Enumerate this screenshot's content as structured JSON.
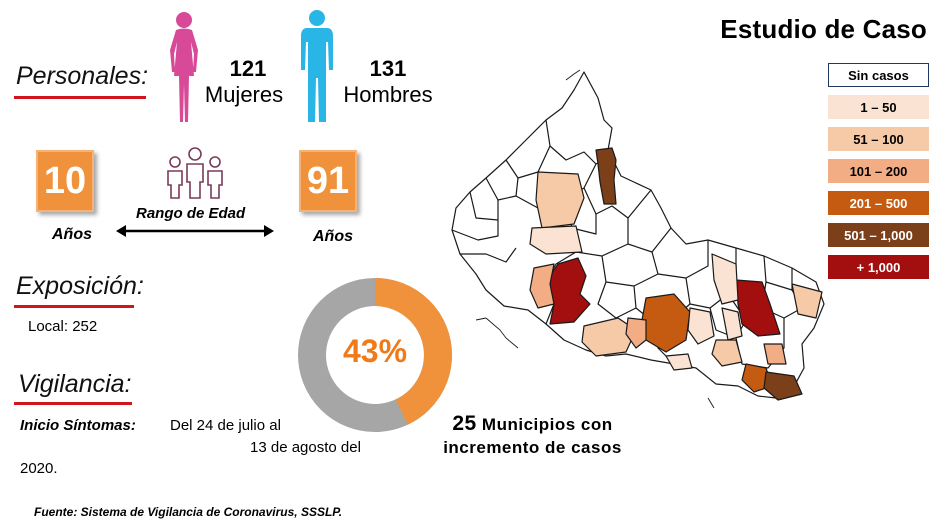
{
  "header": {
    "title": "Estudio de Caso"
  },
  "personales": {
    "label": "Personales:",
    "women": {
      "count": "121",
      "label": "Mujeres"
    },
    "men": {
      "count": "131",
      "label": "Hombres"
    }
  },
  "age": {
    "min": "10",
    "max": "91",
    "unit": "Años",
    "range_label": "Rango de Edad"
  },
  "exposicion": {
    "label": "Exposición:",
    "local": "Local: 252"
  },
  "donut": {
    "percent_label": "43%",
    "percent": 43,
    "color_fill": "#f0913b",
    "color_rest": "#a6a6a6"
  },
  "vigilancia": {
    "label": "Vigilancia:",
    "inicio_label": "Inicio Síntomas:",
    "text_line1": "Del 24 de julio al",
    "text_line2": "13 de agosto del",
    "text_line3": "2020."
  },
  "municipios": {
    "line1_num": "25",
    "line1_text": "Municipios con",
    "line2": "incremento de casos"
  },
  "legend": [
    {
      "label": "Sin casos",
      "bg": "#ffffff",
      "fg": "#000000"
    },
    {
      "label": "1 – 50",
      "bg": "#fbe3d3",
      "fg": "#000000"
    },
    {
      "label": "51 – 100",
      "bg": "#f6c9a7",
      "fg": "#000000"
    },
    {
      "label": "101 – 200",
      "bg": "#f2ad84",
      "fg": "#000000"
    },
    {
      "label": "201 – 500",
      "bg": "#c55a11",
      "fg": "#ffffff"
    },
    {
      "label": "501 – 1,000",
      "bg": "#7b3f1a",
      "fg": "#ffffff"
    },
    {
      "label": "+ 1,000",
      "bg": "#a30f0f",
      "fg": "#ffffff"
    }
  ],
  "footer": {
    "source": "Fuente: Sistema de Vigilancia de Coronavirus, SSSLP."
  },
  "colors": {
    "accent_red": "#d0161b",
    "female": "#d84a98",
    "male": "#29b6e6",
    "orange": "#f0913b"
  }
}
